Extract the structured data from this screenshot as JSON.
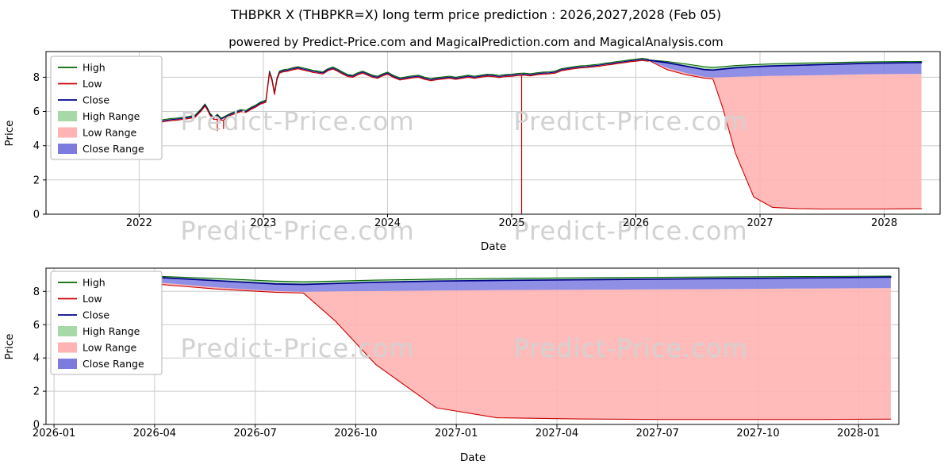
{
  "title": "THBPKR X (THBPKR=X) long term price prediction : 2026,2027,2028 (Feb 05)",
  "subtitle": "powered by Predict-Price.com and MagicalPrediction.com and MagicalAnalysis.com",
  "watermark_text": "Predict-Price.com",
  "colors": {
    "high_line": "#006400",
    "low_line": "#cc0000",
    "close_line": "#00008b",
    "high_range_fill": "#a6d9a6",
    "low_range_fill": "#ffb3b3",
    "close_range_fill": "#7b7be0",
    "grid": "#cccccc",
    "watermark": "#d2d2d2",
    "axis_text": "#000000"
  },
  "chart_data": [
    {
      "type": "line",
      "name": "long-term-history-and-prediction",
      "xlabel": "Date",
      "ylabel": "Price",
      "xlim": [
        2021.25,
        2028.45
      ],
      "ylim": [
        0,
        9.5
      ],
      "xticks": [
        {
          "v": 2022,
          "label": "2022"
        },
        {
          "v": 2023,
          "label": "2023"
        },
        {
          "v": 2024,
          "label": "2024"
        },
        {
          "v": 2025,
          "label": "2025"
        },
        {
          "v": 2026,
          "label": "2026"
        },
        {
          "v": 2027,
          "label": "2027"
        },
        {
          "v": 2028,
          "label": "2028"
        }
      ],
      "yticks": [
        0,
        2,
        4,
        6,
        8
      ],
      "legend": [
        {
          "label": "High",
          "type": "line",
          "color": "#006400"
        },
        {
          "label": "Low",
          "type": "line",
          "color": "#cc0000"
        },
        {
          "label": "Close",
          "type": "line",
          "color": "#00008b"
        },
        {
          "label": "High Range",
          "type": "patch",
          "color": "#a6d9a6"
        },
        {
          "label": "Low Range",
          "type": "patch",
          "color": "#ffb3b3"
        },
        {
          "label": "Close Range",
          "type": "patch",
          "color": "#7b7be0"
        }
      ],
      "history": {
        "spread": 0.06,
        "x": [
          2021.55,
          2021.6,
          2021.65,
          2021.7,
          2021.75,
          2021.8,
          2021.85,
          2021.9,
          2021.95,
          2022.0,
          2022.05,
          2022.1,
          2022.15,
          2022.2,
          2022.25,
          2022.3,
          2022.35,
          2022.4,
          2022.45,
          2022.5,
          2022.53,
          2022.55,
          2022.57,
          2022.6,
          2022.63,
          2022.66,
          2022.7,
          2022.74,
          2022.78,
          2022.82,
          2022.86,
          2022.9,
          2022.94,
          2022.98,
          2023.02,
          2023.05,
          2023.07,
          2023.09,
          2023.11,
          2023.13,
          2023.16,
          2023.2,
          2023.24,
          2023.28,
          2023.32,
          2023.36,
          2023.4,
          2023.44,
          2023.48,
          2023.52,
          2023.56,
          2023.6,
          2023.64,
          2023.68,
          2023.72,
          2023.76,
          2023.8,
          2023.84,
          2023.88,
          2023.92,
          2023.96,
          2024.0,
          2024.05,
          2024.1,
          2024.15,
          2024.2,
          2024.25,
          2024.3,
          2024.35,
          2024.4,
          2024.45,
          2024.5,
          2024.55,
          2024.6,
          2024.65,
          2024.7,
          2024.75,
          2024.8,
          2024.85,
          2024.9,
          2024.95,
          2025.0,
          2025.05,
          2025.1,
          2025.15,
          2025.2,
          2025.25,
          2025.3,
          2025.35,
          2025.4,
          2025.45,
          2025.5,
          2025.55,
          2025.6,
          2025.65,
          2025.7,
          2025.75,
          2025.8,
          2025.85,
          2025.9,
          2025.95,
          2026.0,
          2026.05,
          2026.1
        ],
        "close": [
          5.15,
          5.2,
          5.17,
          5.22,
          5.27,
          5.24,
          5.3,
          5.28,
          5.33,
          5.38,
          5.36,
          5.42,
          5.4,
          5.47,
          5.52,
          5.55,
          5.6,
          5.65,
          5.72,
          6.1,
          6.38,
          6.15,
          5.85,
          5.6,
          5.78,
          5.55,
          5.7,
          5.85,
          5.95,
          6.05,
          6.0,
          6.18,
          6.32,
          6.5,
          6.6,
          8.3,
          7.85,
          7.05,
          7.9,
          8.3,
          8.38,
          8.42,
          8.5,
          8.56,
          8.48,
          8.42,
          8.34,
          8.3,
          8.26,
          8.44,
          8.54,
          8.4,
          8.24,
          8.1,
          8.06,
          8.2,
          8.3,
          8.18,
          8.06,
          8.0,
          8.14,
          8.24,
          8.04,
          7.9,
          7.96,
          8.02,
          8.06,
          7.94,
          7.86,
          7.92,
          7.96,
          8.0,
          7.94,
          8.0,
          8.06,
          8.0,
          8.06,
          8.12,
          8.1,
          8.04,
          8.1,
          8.12,
          8.16,
          8.18,
          8.14,
          8.2,
          8.24,
          8.26,
          8.3,
          8.44,
          8.5,
          8.56,
          8.6,
          8.62,
          8.66,
          8.7,
          8.76,
          8.8,
          8.86,
          8.9,
          8.96,
          9.0,
          9.04,
          9.0
        ],
        "low_spikes": [
          {
            "x": 2022.63,
            "v": 4.88
          },
          {
            "x": 2022.68,
            "v": 5.0
          },
          {
            "x": 2025.08,
            "v": 0.05
          }
        ]
      },
      "prediction": {
        "x": [
          2026.1,
          2026.25,
          2026.4,
          2026.55,
          2026.62,
          2026.7,
          2026.8,
          2026.95,
          2027.1,
          2027.3,
          2027.5,
          2027.7,
          2027.9,
          2028.3
        ],
        "high": [
          9.02,
          8.92,
          8.78,
          8.62,
          8.58,
          8.62,
          8.68,
          8.74,
          8.78,
          8.82,
          8.85,
          8.88,
          8.9,
          8.92
        ],
        "close": [
          9.0,
          8.85,
          8.65,
          8.45,
          8.42,
          8.48,
          8.55,
          8.62,
          8.66,
          8.7,
          8.74,
          8.78,
          8.82,
          8.86
        ],
        "close_low": [
          9.0,
          8.55,
          8.25,
          8.02,
          7.98,
          8.0,
          8.02,
          8.05,
          8.08,
          8.1,
          8.12,
          8.15,
          8.18,
          8.2
        ],
        "low": [
          9.0,
          8.45,
          8.15,
          7.95,
          7.9,
          6.2,
          3.6,
          1.0,
          0.4,
          0.33,
          0.3,
          0.3,
          0.3,
          0.32
        ]
      }
    },
    {
      "type": "line",
      "name": "prediction-zoom",
      "xlabel": "Date",
      "ylabel": "Price",
      "xlim": [
        2025.98,
        2028.1
      ],
      "ylim": [
        0,
        9.4
      ],
      "xticks": [
        {
          "v": 2026.0,
          "label": "2026-01"
        },
        {
          "v": 2026.25,
          "label": "2026-04"
        },
        {
          "v": 2026.5,
          "label": "2026-07"
        },
        {
          "v": 2026.75,
          "label": "2026-10"
        },
        {
          "v": 2027.0,
          "label": "2027-01"
        },
        {
          "v": 2027.25,
          "label": "2027-04"
        },
        {
          "v": 2027.5,
          "label": "2027-07"
        },
        {
          "v": 2027.75,
          "label": "2027-10"
        },
        {
          "v": 2028.0,
          "label": "2028-01"
        }
      ],
      "yticks": [
        0,
        2,
        4,
        6,
        8
      ],
      "legend": [
        {
          "label": "High",
          "type": "line",
          "color": "#006400"
        },
        {
          "label": "Low",
          "type": "line",
          "color": "#cc0000"
        },
        {
          "label": "Close",
          "type": "line",
          "color": "#00008b"
        },
        {
          "label": "High Range",
          "type": "patch",
          "color": "#a6d9a6"
        },
        {
          "label": "Low Range",
          "type": "patch",
          "color": "#ffb3b3"
        },
        {
          "label": "Close Range",
          "type": "patch",
          "color": "#7b7be0"
        }
      ],
      "prediction": {
        "x": [
          2026.1,
          2026.25,
          2026.4,
          2026.55,
          2026.62,
          2026.7,
          2026.8,
          2026.95,
          2027.1,
          2027.3,
          2027.5,
          2027.7,
          2027.9,
          2028.08
        ],
        "high": [
          9.02,
          8.92,
          8.78,
          8.62,
          8.58,
          8.62,
          8.68,
          8.74,
          8.78,
          8.82,
          8.85,
          8.88,
          8.9,
          8.92
        ],
        "close": [
          9.0,
          8.85,
          8.65,
          8.45,
          8.42,
          8.48,
          8.55,
          8.62,
          8.66,
          8.7,
          8.74,
          8.78,
          8.82,
          8.86
        ],
        "close_low": [
          9.0,
          8.55,
          8.25,
          8.02,
          7.98,
          8.0,
          8.02,
          8.05,
          8.08,
          8.1,
          8.12,
          8.15,
          8.18,
          8.2
        ],
        "low": [
          9.0,
          8.45,
          8.15,
          7.95,
          7.9,
          6.2,
          3.6,
          1.0,
          0.4,
          0.33,
          0.3,
          0.3,
          0.3,
          0.32
        ]
      }
    }
  ]
}
